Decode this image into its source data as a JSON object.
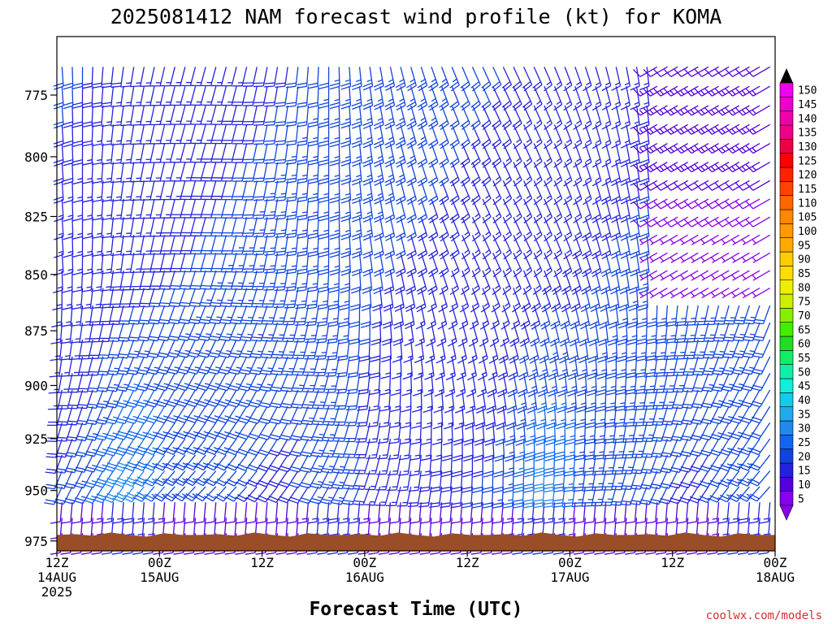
{
  "chart_data": {
    "type": "wind-barb profile",
    "title": "2025081412 NAM forecast wind profile (kt) for KOMA",
    "xlabel": "Forecast Time (UTC)",
    "units": "kt",
    "y_axis": {
      "range": [
        980,
        752
      ],
      "inverted": true,
      "ticks": [
        775,
        800,
        825,
        850,
        875,
        900,
        925,
        950,
        975
      ]
    },
    "x_axis": {
      "range_hours": [
        0,
        84
      ],
      "ticks": [
        {
          "hour": 0,
          "line1": "12Z",
          "line2": "14AUG",
          "line3": "2025"
        },
        {
          "hour": 12,
          "line1": "00Z",
          "line2": "15AUG",
          "line3": ""
        },
        {
          "hour": 24,
          "line1": "12Z",
          "line2": "",
          "line3": ""
        },
        {
          "hour": 36,
          "line1": "00Z",
          "line2": "16AUG",
          "line3": ""
        },
        {
          "hour": 48,
          "line1": "12Z",
          "line2": "",
          "line3": ""
        },
        {
          "hour": 60,
          "line1": "00Z",
          "line2": "17AUG",
          "line3": ""
        },
        {
          "hour": 72,
          "line1": "12Z",
          "line2": "",
          "line3": ""
        },
        {
          "hour": 84,
          "line1": "00Z",
          "line2": "18AUG",
          "line3": ""
        }
      ]
    },
    "colorbar": {
      "labels": [
        "5",
        "10",
        "15",
        "20",
        "25",
        "30",
        "35",
        "40",
        "45",
        "50",
        "55",
        "60",
        "65",
        "70",
        "75",
        "80",
        "85",
        "90",
        "95",
        "100",
        "105",
        "110",
        "115",
        "120",
        "125",
        "130",
        "135",
        "140",
        "145",
        "150"
      ],
      "colors": [
        "#8800ee",
        "#5500dd",
        "#2222dd",
        "#1144dd",
        "#1166ee",
        "#2288ee",
        "#22aaee",
        "#11ccee",
        "#11eedd",
        "#11eeaa",
        "#11ee66",
        "#22dd22",
        "#44ee00",
        "#88ee00",
        "#ccee00",
        "#eeee00",
        "#ffdd00",
        "#ffcc00",
        "#ffaa00",
        "#ff9900",
        "#ff8800",
        "#ff6600",
        "#ff4400",
        "#ff2200",
        "#ff0000",
        "#ee0044",
        "#ee0088",
        "#ee00aa",
        "#ee00cc",
        "#ee00ee"
      ]
    },
    "terrain": {
      "color": "#9a4e28",
      "surface_pressure_hpa": 972
    },
    "grid": false
  },
  "credit": "coolwx.com/models"
}
